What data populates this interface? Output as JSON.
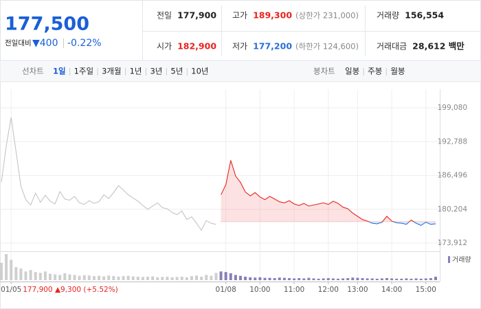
{
  "header": {
    "price": "177,500",
    "change_label": "전일대비",
    "change": "▼400",
    "change_pct": "-0.22%"
  },
  "stats": [
    {
      "label": "전일",
      "value": "177,900",
      "color": "#222222"
    },
    {
      "label": "고가",
      "value": "189,300",
      "note": "(상한가 231,000)",
      "color": "#e8231f"
    },
    {
      "label": "거래량",
      "value": "156,554",
      "color": "#222222"
    },
    {
      "label": "시가",
      "value": "182,900",
      "color": "#e8231f"
    },
    {
      "label": "저가",
      "value": "177,200",
      "note": "(하한가 124,600)",
      "color": "#2d6fd6"
    },
    {
      "label": "거래대금",
      "value": "28,612 백만",
      "color": "#222222"
    }
  ],
  "tabs": {
    "line_label": "선차트",
    "periods": [
      "1일",
      "1주일",
      "3개월",
      "1년",
      "3년",
      "5년",
      "10년"
    ],
    "candle_label": "봉차트",
    "candles": [
      "일봉",
      "주봉",
      "월봉"
    ]
  },
  "chart_data": {
    "type": "line",
    "categories": [
      null,
      null,
      "01/05",
      null,
      null,
      null,
      null,
      null,
      null,
      null,
      null,
      null,
      null,
      null,
      null,
      null,
      null,
      null,
      null,
      null,
      null,
      null,
      null,
      null,
      null,
      null,
      null,
      null,
      null,
      null,
      null,
      null,
      null,
      null,
      null,
      null,
      null,
      null,
      null,
      null,
      null,
      null,
      null,
      null,
      null,
      null,
      "01/08",
      null,
      null,
      null,
      null,
      null,
      null,
      "10:00",
      null,
      null,
      null,
      null,
      null,
      null,
      "11:00",
      null,
      null,
      null,
      null,
      null,
      null,
      "12:00",
      null,
      null,
      null,
      null,
      null,
      "13:00",
      null,
      null,
      null,
      null,
      null,
      null,
      "14:00",
      null,
      null,
      null,
      null,
      null,
      null,
      "15:00",
      null,
      null
    ],
    "series": [
      {
        "color": "#c4c4c4",
        "values": [
          185300,
          192000,
          197300,
          191000,
          184500,
          182000,
          181000,
          183200,
          181500,
          182800,
          181700,
          181200,
          183500,
          182100,
          181900,
          182600,
          181400,
          181100,
          181800,
          181300,
          181600,
          182900,
          182200,
          183300,
          184600,
          183800,
          182900,
          182300,
          181700,
          180900,
          180200,
          180800,
          181400,
          180500,
          180300,
          179600,
          179200,
          179900,
          178300,
          178800,
          177600,
          176300,
          178100,
          177600,
          177400,
          null,
          null,
          null,
          null,
          null,
          null,
          null,
          null,
          null,
          null,
          null,
          null,
          null,
          null,
          null,
          null,
          null,
          null,
          null,
          null,
          null,
          null,
          null,
          null,
          null,
          null,
          null,
          null,
          null,
          null,
          null,
          null,
          null,
          null,
          null,
          null,
          null,
          null,
          null,
          null,
          null,
          null,
          null,
          null,
          null
        ]
      },
      {
        "color": "#e8231f",
        "color_below": "#2d6fd6",
        "values": [
          null,
          null,
          null,
          null,
          null,
          null,
          null,
          null,
          null,
          null,
          null,
          null,
          null,
          null,
          null,
          null,
          null,
          null,
          null,
          null,
          null,
          null,
          null,
          null,
          null,
          null,
          null,
          null,
          null,
          null,
          null,
          null,
          null,
          null,
          null,
          null,
          null,
          null,
          null,
          null,
          null,
          null,
          null,
          null,
          null,
          182900,
          184800,
          189300,
          186400,
          185200,
          183400,
          182700,
          183300,
          182500,
          182000,
          182600,
          182100,
          181600,
          181400,
          181800,
          181200,
          180900,
          181300,
          180800,
          181000,
          181200,
          181400,
          181100,
          181700,
          181300,
          180600,
          180300,
          179500,
          178900,
          178300,
          178000,
          177600,
          177500,
          177800,
          178900,
          178000,
          177700,
          177600,
          177400,
          178200,
          177600,
          177200,
          177800,
          177400,
          177500
        ]
      }
    ],
    "volume": {
      "name": "거래량",
      "color": "#8a7fb8",
      "values": [
        60,
        90,
        70,
        45,
        40,
        30,
        35,
        28,
        25,
        30,
        22,
        20,
        18,
        24,
        20,
        18,
        15,
        17,
        16,
        14,
        15,
        13,
        16,
        14,
        12,
        14,
        15,
        13,
        12,
        11,
        12,
        13,
        10,
        11,
        12,
        10,
        11,
        12,
        10,
        14,
        16,
        12,
        18,
        15,
        25,
        30,
        28,
        24,
        18,
        15,
        12,
        10,
        9,
        10,
        8,
        8,
        7,
        9,
        8,
        7,
        6,
        7,
        6,
        8,
        6,
        5,
        6,
        7,
        6,
        5,
        6,
        7,
        9,
        8,
        7,
        6,
        6,
        5,
        6,
        7,
        6,
        5,
        5,
        6,
        5,
        6,
        5,
        6,
        7,
        12
      ]
    },
    "reference": 177900,
    "annotation": "177,900 ▲9,300 (+5.52%)",
    "ylim": [
      172380,
      202530
    ],
    "yticks": [
      {
        "value": 173912,
        "label": "173,912"
      },
      {
        "value": 180204,
        "label": "180,204"
      },
      {
        "value": 186496,
        "label": "186,496"
      },
      {
        "value": 192788,
        "label": "192,788"
      },
      {
        "value": 199080,
        "label": "199,080"
      }
    ],
    "grid": true
  }
}
